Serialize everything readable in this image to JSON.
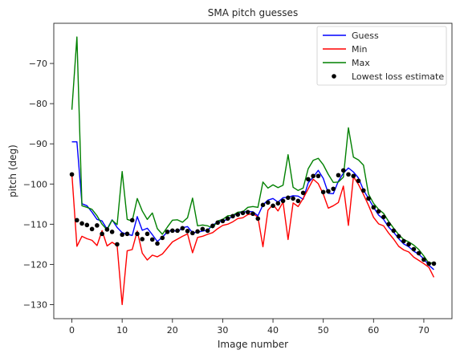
{
  "chart_data": {
    "type": "line",
    "title": "SMA pitch guesses",
    "xlabel": "Image number",
    "ylabel": "pitch (deg)",
    "xlim": [
      -3.6,
      75.6
    ],
    "ylim": [
      -133.5,
      -60
    ],
    "xticks": [
      0,
      10,
      20,
      30,
      40,
      50,
      60,
      70
    ],
    "yticks": [
      -130,
      -120,
      -110,
      -100,
      -90,
      -80,
      -70
    ],
    "xtick_labels": [
      "0",
      "10",
      "20",
      "30",
      "40",
      "50",
      "60",
      "70"
    ],
    "ytick_labels": [
      "−130",
      "−120",
      "−110",
      "−100",
      "−90",
      "−80",
      "−70"
    ],
    "grid": false,
    "legend_position": "top-right",
    "x": [
      0,
      1,
      2,
      3,
      4,
      5,
      6,
      7,
      8,
      9,
      10,
      11,
      12,
      13,
      14,
      15,
      16,
      17,
      18,
      19,
      20,
      21,
      22,
      23,
      24,
      25,
      26,
      27,
      28,
      29,
      30,
      31,
      32,
      33,
      34,
      35,
      36,
      37,
      38,
      39,
      40,
      41,
      42,
      43,
      44,
      45,
      46,
      47,
      48,
      49,
      50,
      51,
      52,
      53,
      54,
      55,
      56,
      57,
      58,
      59,
      60,
      61,
      62,
      63,
      64,
      65,
      66,
      67,
      68,
      69,
      70,
      71,
      72
    ],
    "series": [
      {
        "name": "Guess",
        "kind": "line",
        "color": "#0000ff",
        "values": [
          -89.5,
          -89.5,
          -104.9,
          -105.4,
          -107.0,
          -108.8,
          -109.2,
          -111.2,
          -108.9,
          -110.8,
          -112.1,
          -112.5,
          -112.8,
          -108.1,
          -111.5,
          -111.0,
          -112.6,
          -114.3,
          -113.2,
          -111.9,
          -111.4,
          -111.9,
          -110.9,
          -110.6,
          -112.1,
          -112.0,
          -111.7,
          -111.5,
          -110.2,
          -109.5,
          -109.2,
          -108.8,
          -108.0,
          -107.2,
          -107.0,
          -106.8,
          -106.9,
          -107.9,
          -105.2,
          -104.0,
          -103.6,
          -104.5,
          -103.4,
          -103.3,
          -102.9,
          -103.0,
          -103.8,
          -99.7,
          -98.3,
          -96.6,
          -98.6,
          -102.3,
          -102.4,
          -99.3,
          -97.3,
          -96.0,
          -97.0,
          -98.5,
          -101.5,
          -103.6,
          -105.8,
          -107.7,
          -108.8,
          -110.7,
          -112.0,
          -113.6,
          -114.9,
          -115.6,
          -116.7,
          -117.5,
          -118.6,
          -120.2,
          -121.3
        ]
      },
      {
        "name": "Min",
        "kind": "line",
        "color": "#ff0000",
        "values": [
          -97.5,
          -115.5,
          -113.0,
          -113.6,
          -114.0,
          -115.3,
          -111.6,
          -115.4,
          -114.5,
          -115.3,
          -130.0,
          -116.6,
          -116.3,
          -111.7,
          -117.2,
          -118.9,
          -117.7,
          -118.1,
          -117.4,
          -115.9,
          -114.4,
          -113.7,
          -113.0,
          -112.4,
          -117.1,
          -113.3,
          -113.0,
          -112.5,
          -112.1,
          -111.1,
          -110.3,
          -110.0,
          -109.4,
          -108.6,
          -108.4,
          -107.6,
          -107.4,
          -108.2,
          -115.6,
          -106.5,
          -105.1,
          -106.7,
          -104.5,
          -113.8,
          -104.7,
          -105.6,
          -103.6,
          -101.2,
          -98.8,
          -99.9,
          -102.5,
          -106.0,
          -105.4,
          -104.6,
          -100.5,
          -110.3,
          -98.2,
          -100.1,
          -102.6,
          -105.3,
          -108.3,
          -109.9,
          -110.4,
          -112.2,
          -113.7,
          -115.5,
          -116.4,
          -116.9,
          -118.2,
          -119.0,
          -119.8,
          -120.7,
          -123.2
        ]
      },
      {
        "name": "Max",
        "kind": "line",
        "color": "#008000",
        "values": [
          -81.5,
          -63.4,
          -105.4,
          -105.8,
          -106.3,
          -107.9,
          -110.0,
          -111.4,
          -109.0,
          -110.1,
          -96.9,
          -108.8,
          -109.2,
          -103.6,
          -106.7,
          -108.8,
          -107.2,
          -111.1,
          -112.5,
          -110.7,
          -109.0,
          -108.9,
          -109.5,
          -108.4,
          -103.5,
          -110.4,
          -110.2,
          -110.4,
          -110.9,
          -109.2,
          -108.8,
          -107.9,
          -107.8,
          -107.0,
          -106.9,
          -105.8,
          -105.6,
          -105.8,
          -99.5,
          -101.0,
          -100.2,
          -100.9,
          -100.3,
          -92.7,
          -100.8,
          -101.6,
          -101.0,
          -96.2,
          -94.1,
          -93.6,
          -95.2,
          -97.6,
          -99.6,
          -99.5,
          -98.3,
          -86.0,
          -93.3,
          -94.0,
          -95.3,
          -102.5,
          -104.8,
          -106.3,
          -107.3,
          -109.3,
          -111.0,
          -112.6,
          -113.8,
          -114.4,
          -115.2,
          -116.3,
          -117.9,
          -119.7,
          -119.6
        ]
      },
      {
        "name": "Lowest loss estimate",
        "kind": "scatter",
        "color": "#000000",
        "values": [
          -97.6,
          -109.0,
          -109.8,
          -110.2,
          -111.2,
          -110.3,
          -112.4,
          -111.3,
          -111.9,
          -115.0,
          -112.6,
          -112.4,
          -109.0,
          -112.4,
          -113.7,
          -112.4,
          -113.8,
          -114.8,
          -113.4,
          -111.9,
          -111.6,
          -111.6,
          -111.0,
          -111.7,
          -112.2,
          -111.8,
          -111.2,
          -111.6,
          -110.4,
          -109.6,
          -109.2,
          -108.6,
          -108.0,
          -107.6,
          -107.2,
          -107.0,
          -107.4,
          -108.6,
          -105.2,
          -104.6,
          -105.4,
          -104.8,
          -104.2,
          -103.4,
          -103.6,
          -104.2,
          -102.2,
          -98.8,
          -98.0,
          -98.0,
          -102.0,
          -101.8,
          -101.2,
          -97.8,
          -96.6,
          -97.6,
          -98.0,
          -99.2,
          -101.6,
          -103.6,
          -105.8,
          -106.8,
          -108.2,
          -110.0,
          -111.6,
          -113.0,
          -114.2,
          -115.0,
          -116.2,
          -117.2,
          -118.8,
          -119.8,
          -119.8
        ]
      }
    ]
  }
}
